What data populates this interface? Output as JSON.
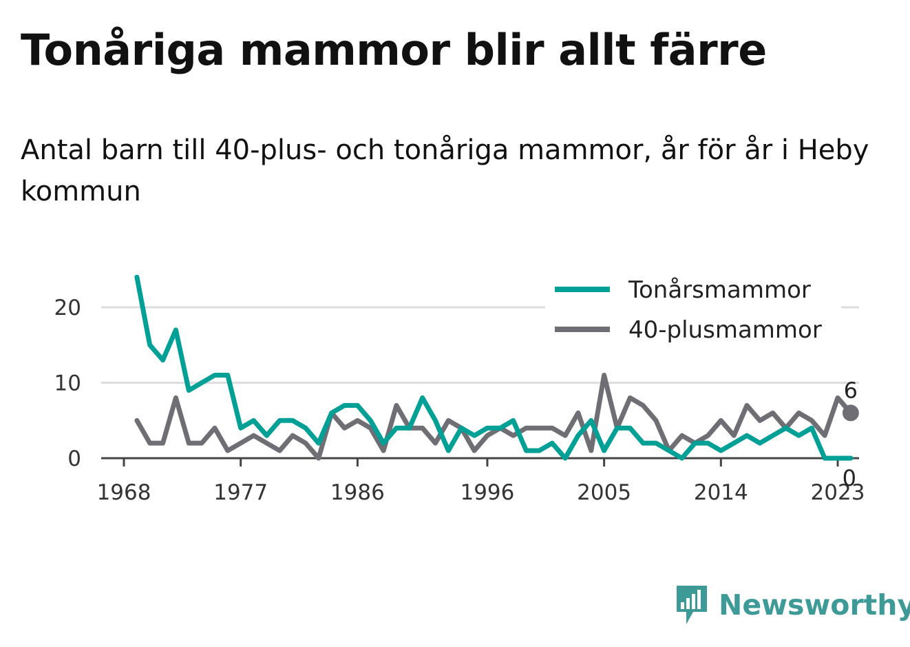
{
  "title": "Tonåriga mammor blir allt färre",
  "subtitle": "Antal barn till 40-plus- och tonåriga mammor, år för år i Heby kommun",
  "brand": {
    "name": "Newsworthy",
    "icon": "newsworthy-logo-icon",
    "color": "#3e9a96"
  },
  "chart_data": {
    "type": "line",
    "x_ticks": [
      1968,
      1977,
      1986,
      1996,
      2005,
      2014,
      2023
    ],
    "y_ticks": [
      0,
      10,
      20
    ],
    "xlim": [
      1968,
      2025
    ],
    "ylim": [
      0,
      24
    ],
    "grid": true,
    "legend_position": "top-right",
    "x": [
      1969,
      1970,
      1971,
      1972,
      1973,
      1974,
      1975,
      1976,
      1977,
      1978,
      1979,
      1980,
      1981,
      1982,
      1983,
      1984,
      1985,
      1986,
      1987,
      1988,
      1989,
      1990,
      1991,
      1992,
      1993,
      1994,
      1995,
      1996,
      1997,
      1998,
      1999,
      2000,
      2001,
      2002,
      2003,
      2004,
      2005,
      2006,
      2007,
      2008,
      2009,
      2010,
      2011,
      2012,
      2013,
      2014,
      2015,
      2016,
      2017,
      2018,
      2019,
      2020,
      2021,
      2022,
      2023,
      2024
    ],
    "series": [
      {
        "name": "Tonårsmammor",
        "color": "#00a096",
        "values": [
          24,
          15,
          13,
          17,
          9,
          10,
          11,
          11,
          4,
          5,
          3,
          5,
          5,
          4,
          2,
          6,
          7,
          7,
          5,
          2,
          4,
          4,
          8,
          5,
          1,
          4,
          3,
          4,
          4,
          5,
          1,
          1,
          2,
          0,
          3,
          5,
          1,
          4,
          4,
          2,
          2,
          1,
          0,
          2,
          2,
          1,
          2,
          3,
          2,
          3,
          4,
          3,
          4,
          0,
          0,
          0
        ],
        "end_label": "0"
      },
      {
        "name": "40-plusmammor",
        "color": "#6e6e74",
        "values": [
          5,
          2,
          2,
          8,
          2,
          2,
          4,
          1,
          2,
          3,
          2,
          1,
          3,
          2,
          0,
          6,
          4,
          5,
          4,
          1,
          7,
          4,
          4,
          2,
          5,
          4,
          1,
          3,
          4,
          3,
          4,
          4,
          4,
          3,
          6,
          1,
          11,
          4,
          8,
          7,
          5,
          1,
          3,
          2,
          3,
          5,
          3,
          7,
          5,
          6,
          4,
          6,
          5,
          3,
          8,
          6
        ],
        "end_label": "6"
      }
    ]
  }
}
